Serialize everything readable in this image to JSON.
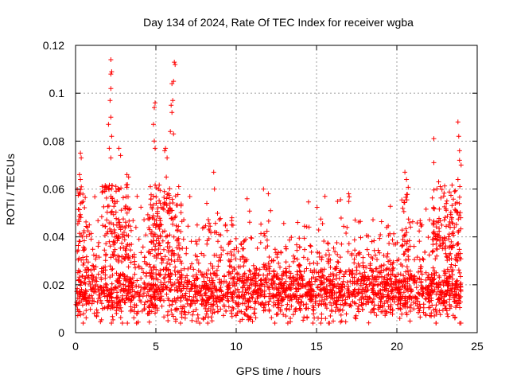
{
  "chart_data": {
    "type": "scatter",
    "title": "Day 134 of 2024, Rate Of TEC Index for receiver wgba",
    "xlabel": "GPS time / hours",
    "ylabel": "ROTI / TECUs",
    "xlim": [
      0,
      25
    ],
    "ylim": [
      0,
      0.12
    ],
    "xticks": [
      0,
      5,
      10,
      15,
      20,
      25
    ],
    "yticks": [
      0,
      0.02,
      0.04,
      0.06,
      0.08,
      0.1,
      0.12
    ],
    "xtick_labels": [
      "0",
      "5",
      "10",
      "15",
      "20",
      "25"
    ],
    "ytick_labels": [
      "0",
      "0.02",
      "0.04",
      "0.06",
      "0.08",
      "0.1",
      "0.12"
    ],
    "grid": true,
    "marker": "plus",
    "series_color": "#ff0000",
    "data_range_x": [
      0,
      24
    ],
    "baseline_band": [
      0.005,
      0.035
    ],
    "dense_points_count": 2600,
    "notable_points": [
      {
        "x": 2.2,
        "y": 0.114
      },
      {
        "x": 2.25,
        "y": 0.109
      },
      {
        "x": 2.2,
        "y": 0.108
      },
      {
        "x": 2.2,
        "y": 0.102
      },
      {
        "x": 2.15,
        "y": 0.097
      },
      {
        "x": 2.2,
        "y": 0.09
      },
      {
        "x": 2.05,
        "y": 0.087
      },
      {
        "x": 2.25,
        "y": 0.082
      },
      {
        "x": 2.1,
        "y": 0.077
      },
      {
        "x": 2.2,
        "y": 0.073
      },
      {
        "x": 2.7,
        "y": 0.077
      },
      {
        "x": 2.8,
        "y": 0.074
      },
      {
        "x": 3.2,
        "y": 0.066
      },
      {
        "x": 3.3,
        "y": 0.065
      },
      {
        "x": 0.3,
        "y": 0.075
      },
      {
        "x": 0.35,
        "y": 0.073
      },
      {
        "x": 0.25,
        "y": 0.066
      },
      {
        "x": 0.3,
        "y": 0.064
      },
      {
        "x": 4.95,
        "y": 0.096
      },
      {
        "x": 4.9,
        "y": 0.094
      },
      {
        "x": 4.85,
        "y": 0.087
      },
      {
        "x": 4.9,
        "y": 0.08
      },
      {
        "x": 4.95,
        "y": 0.077
      },
      {
        "x": 6.15,
        "y": 0.113
      },
      {
        "x": 6.2,
        "y": 0.112
      },
      {
        "x": 6.1,
        "y": 0.105
      },
      {
        "x": 6.0,
        "y": 0.104
      },
      {
        "x": 6.05,
        "y": 0.097
      },
      {
        "x": 5.95,
        "y": 0.095
      },
      {
        "x": 6.0,
        "y": 0.092
      },
      {
        "x": 5.9,
        "y": 0.084
      },
      {
        "x": 6.1,
        "y": 0.083
      },
      {
        "x": 5.6,
        "y": 0.077
      },
      {
        "x": 5.55,
        "y": 0.076
      },
      {
        "x": 5.7,
        "y": 0.073
      },
      {
        "x": 5.65,
        "y": 0.065
      },
      {
        "x": 8.6,
        "y": 0.067
      },
      {
        "x": 8.65,
        "y": 0.06
      },
      {
        "x": 22.3,
        "y": 0.081
      },
      {
        "x": 22.3,
        "y": 0.071
      },
      {
        "x": 23.8,
        "y": 0.088
      },
      {
        "x": 23.85,
        "y": 0.082
      },
      {
        "x": 23.9,
        "y": 0.076
      },
      {
        "x": 23.9,
        "y": 0.072
      },
      {
        "x": 24.0,
        "y": 0.07
      },
      {
        "x": 23.8,
        "y": 0.064
      },
      {
        "x": 20.5,
        "y": 0.067
      },
      {
        "x": 20.6,
        "y": 0.064
      },
      {
        "x": 22.6,
        "y": 0.063
      },
      {
        "x": 22.7,
        "y": 0.061
      },
      {
        "x": 17.0,
        "y": 0.058
      },
      {
        "x": 11.7,
        "y": 0.06
      },
      {
        "x": 12.0,
        "y": 0.058
      }
    ]
  }
}
